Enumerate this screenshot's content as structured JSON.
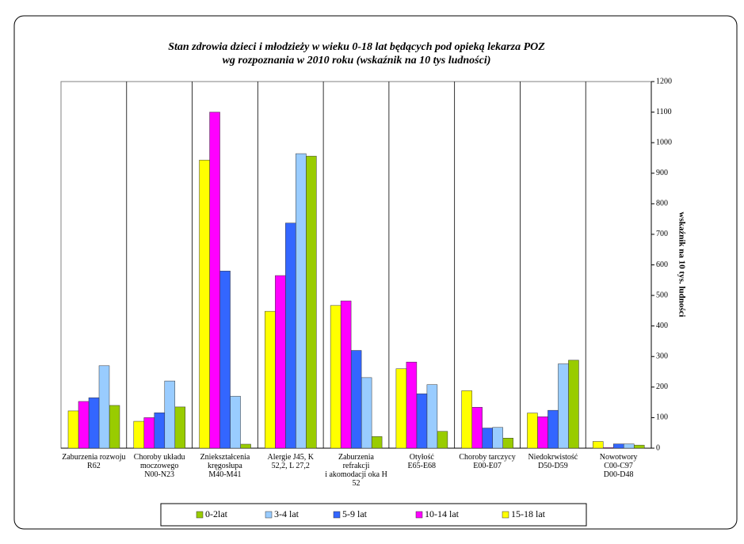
{
  "chart_data": {
    "type": "bar",
    "title": [
      "Stan zdrowia dzieci i młodzieży w wieku 0-18 lat będących pod opieką lekarza POZ",
      "wg rozpoznania w 2010 roku  (wskaźnik na 10 tys ludności)"
    ],
    "y_label": "wskaźnik na 10 tys. ludności",
    "categories": [
      "Zaburzenia rozwoju\nR62",
      "Choroby układu\nmoczowego\nN00-N23",
      "Zniekształcenia\nkręgosłupa\nM40-M41",
      "Alergie J45,      K\n52,2, L 27,2",
      "Zaburzenia\nrefrakcji\ni akomodacji oka H\n52",
      "Otyłość\nE65-E68",
      "Choroby tarczycy\nE00-E07",
      "Niedokrwistość\nD50-D59",
      "Nowotwory\nC00-C97\nD00-D48"
    ],
    "series": [
      {
        "name": "0-2lat",
        "color": "#99cc00",
        "values": [
          140,
          135,
          13,
          956,
          38,
          55,
          33,
          288,
          10
        ]
      },
      {
        "name": "3-4 lat",
        "color": "#99ccff",
        "values": [
          270,
          220,
          170,
          964,
          231,
          208,
          68,
          276,
          14
        ]
      },
      {
        "name": "5-9 lat",
        "color": "#3366ff",
        "values": [
          165,
          116,
          580,
          737,
          320,
          178,
          66,
          124,
          14
        ]
      },
      {
        "name": "10-14 lat",
        "color": "#ff00ff",
        "values": [
          153,
          100,
          1100,
          565,
          482,
          282,
          134,
          103,
          2
        ]
      },
      {
        "name": "15-18 lat",
        "color": "#ffff00",
        "values": [
          122,
          88,
          943,
          448,
          467,
          260,
          188,
          115,
          22
        ]
      }
    ],
    "ylim": [
      0,
      1200
    ],
    "yticks": [
      0,
      100,
      200,
      300,
      400,
      500,
      600,
      700,
      800,
      900,
      1000,
      1100,
      1200
    ],
    "legend": "bottom"
  }
}
